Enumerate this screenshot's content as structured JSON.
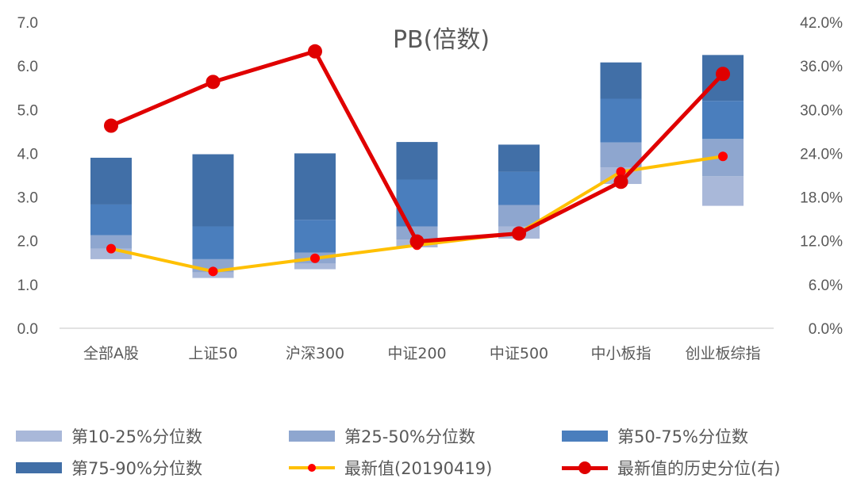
{
  "chart_data": {
    "type": "bar",
    "title": "PB(倍数)",
    "categories": [
      "全部A股",
      "上证50",
      "沪深300",
      "中证200",
      "中证500",
      "中小板指",
      "创业板综指"
    ],
    "y_left": {
      "ticks": [
        "0.0",
        "1.0",
        "2.0",
        "3.0",
        "4.0",
        "5.0",
        "6.0",
        "7.0"
      ],
      "lim": [
        0,
        7
      ]
    },
    "y_right": {
      "ticks": [
        "0.0%",
        "6.0%",
        "12.0%",
        "18.0%",
        "24.0%",
        "30.0%",
        "36.0%",
        "42.0%"
      ],
      "lim": [
        0,
        42
      ]
    },
    "percentiles": {
      "p10": [
        1.58,
        1.15,
        1.35,
        1.85,
        2.05,
        3.3,
        2.8
      ],
      "p25": [
        1.82,
        1.28,
        1.48,
        2.03,
        2.33,
        3.68,
        3.48
      ],
      "p50": [
        2.13,
        1.58,
        1.73,
        2.33,
        2.82,
        4.25,
        4.33
      ],
      "p75": [
        2.83,
        2.33,
        2.48,
        3.4,
        3.58,
        5.25,
        5.2
      ],
      "p90": [
        3.9,
        3.98,
        4.0,
        4.26,
        4.2,
        6.08,
        6.25
      ]
    },
    "series": [
      {
        "name": "第10-25%分位数",
        "kind": "band",
        "from": "p10",
        "to": "p25",
        "color": "#a9b8d9"
      },
      {
        "name": "第25-50%分位数",
        "kind": "band",
        "from": "p25",
        "to": "p50",
        "color": "#8ea6cf"
      },
      {
        "name": "第50-75%分位数",
        "kind": "band",
        "from": "p50",
        "to": "p75",
        "color": "#4a7ebd"
      },
      {
        "name": "第75-90%分位数",
        "kind": "band",
        "from": "p75",
        "to": "p90",
        "color": "#416fa7"
      },
      {
        "name": "最新值(20190419)",
        "kind": "line",
        "axis": "left",
        "values": [
          1.82,
          1.3,
          1.6,
          1.9,
          2.18,
          3.58,
          3.93
        ],
        "color": "#ffc000",
        "marker_color": "#ff0000"
      },
      {
        "name": "最新值的历史分位(右)",
        "kind": "line",
        "axis": "right",
        "values": [
          27.8,
          33.8,
          38.0,
          11.9,
          13.0,
          20.1,
          34.9
        ],
        "color": "#e00000",
        "marker_color": "#e00000"
      }
    ],
    "grid": false,
    "legend_position": "bottom"
  }
}
